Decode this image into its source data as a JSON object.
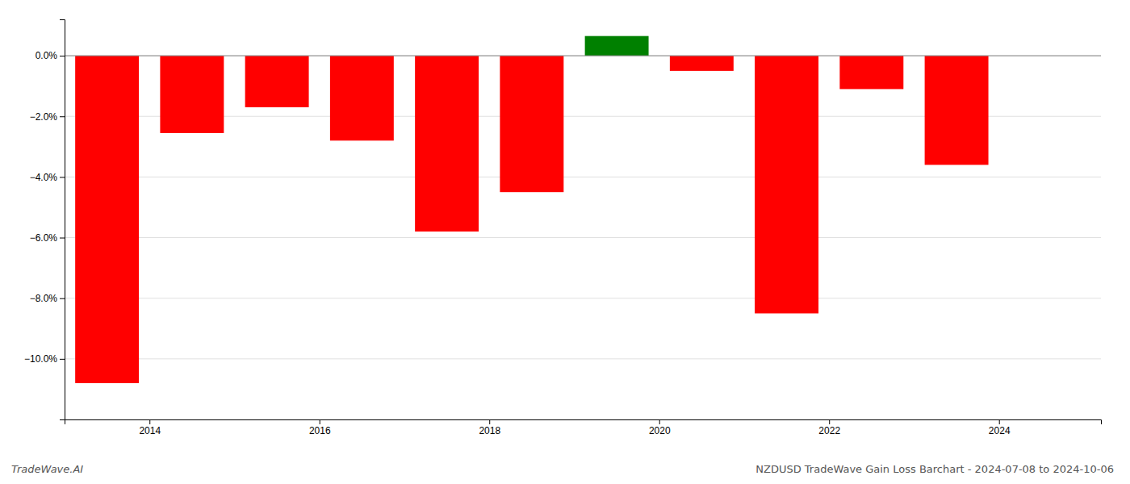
{
  "chart_data": {
    "type": "bar",
    "title": "NZDUSD TradeWave Gain Loss Barchart - 2024-07-08 to 2024-10-06",
    "annotations": [
      "TradeWave.AI"
    ],
    "x": [
      2013.5,
      2014.5,
      2015.5,
      2016.5,
      2017.5,
      2018.5,
      2019.5,
      2020.5,
      2021.5,
      2022.5,
      2023.5
    ],
    "values": [
      -10.8,
      -2.55,
      -1.7,
      -2.8,
      -5.8,
      -4.5,
      0.65,
      -0.5,
      -8.5,
      -1.1,
      -3.6
    ],
    "colors": [
      "#ff0000",
      "#ff0000",
      "#ff0000",
      "#ff0000",
      "#ff0000",
      "#ff0000",
      "#008000",
      "#ff0000",
      "#ff0000",
      "#ff0000",
      "#ff0000"
    ],
    "xlim": [
      2013.0,
      2025.2
    ],
    "xticks": [
      2014,
      2016,
      2018,
      2020,
      2022,
      2024
    ],
    "ylim": [
      -12.0,
      1.2
    ],
    "yticks": [
      {
        "value": 0.0,
        "label": "0.0%"
      },
      {
        "value": -2.0,
        "label": "−2.0%"
      },
      {
        "value": -4.0,
        "label": "−4.0%"
      },
      {
        "value": -6.0,
        "label": "−6.0%"
      },
      {
        "value": -8.0,
        "label": "−8.0%"
      },
      {
        "value": -10.0,
        "label": "−10.0%"
      }
    ],
    "grid": true
  }
}
